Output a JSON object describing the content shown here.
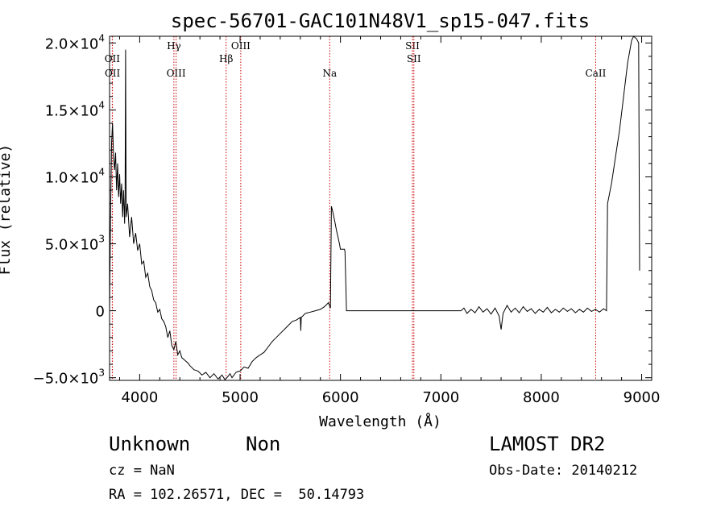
{
  "chart_data": {
    "type": "line",
    "title": "spec-56701-GAC101N48V1_sp15-047.fits",
    "xlabel": "Wavelength (Å)",
    "ylabel": "Flux (relative)",
    "xlim": [
      3700,
      9100
    ],
    "ylim": [
      -5200,
      20500
    ],
    "x_ticks": [
      {
        "value": 4000,
        "label": "4000"
      },
      {
        "value": 5000,
        "label": "5000"
      },
      {
        "value": 6000,
        "label": "6000"
      },
      {
        "value": 7000,
        "label": "7000"
      },
      {
        "value": 8000,
        "label": "8000"
      },
      {
        "value": 9000,
        "label": "9000"
      }
    ],
    "y_ticks": [
      {
        "value": -5000,
        "mant": "−5.0×10",
        "exp": "3"
      },
      {
        "value": 0,
        "mant": "0",
        "exp": ""
      },
      {
        "value": 5000,
        "mant": "5.0×10",
        "exp": "3"
      },
      {
        "value": 10000,
        "mant": "1.0×10",
        "exp": "4"
      },
      {
        "value": 15000,
        "mant": "1.5×10",
        "exp": "4"
      },
      {
        "value": 20000,
        "mant": "2.0×10",
        "exp": "4"
      }
    ],
    "line_color": "#000000",
    "marker_color": "#cc0000",
    "lines": [
      {
        "name": "OII",
        "x": 3727,
        "level": 2
      },
      {
        "name": "OII",
        "x": 3729,
        "level": 3
      },
      {
        "name": "Hγ",
        "x": 4341,
        "level": 0
      },
      {
        "name": "OIII",
        "x": 4363,
        "level": 3
      },
      {
        "name": "Hβ",
        "x": 4861,
        "level": 2
      },
      {
        "name": "OIII",
        "x": 5007,
        "level": 0
      },
      {
        "name": "Na",
        "x": 5893,
        "level": 3
      },
      {
        "name": "SII",
        "x": 6717,
        "level": 0
      },
      {
        "name": "SII",
        "x": 6731,
        "level": 2
      },
      {
        "name": "CaII",
        "x": 8542,
        "level": 3
      }
    ],
    "spectrum": [
      [
        3700,
        0
      ],
      [
        3710,
        7000
      ],
      [
        3720,
        12500
      ],
      [
        3730,
        14000
      ],
      [
        3740,
        11500
      ],
      [
        3750,
        10500
      ],
      [
        3760,
        11800
      ],
      [
        3770,
        9000
      ],
      [
        3780,
        11000
      ],
      [
        3790,
        8500
      ],
      [
        3800,
        10200
      ],
      [
        3810,
        8000
      ],
      [
        3820,
        9500
      ],
      [
        3830,
        7000
      ],
      [
        3840,
        9000
      ],
      [
        3850,
        6500
      ],
      [
        3855,
        8500
      ],
      [
        3860,
        19500
      ],
      [
        3865,
        7000
      ],
      [
        3880,
        8000
      ],
      [
        3900,
        5500
      ],
      [
        3920,
        7000
      ],
      [
        3940,
        5000
      ],
      [
        3960,
        5800
      ],
      [
        3980,
        4500
      ],
      [
        4000,
        5000
      ],
      [
        4020,
        3500
      ],
      [
        4040,
        3700
      ],
      [
        4060,
        2500
      ],
      [
        4080,
        2800
      ],
      [
        4100,
        1800
      ],
      [
        4120,
        1500
      ],
      [
        4140,
        800
      ],
      [
        4160,
        600
      ],
      [
        4180,
        -100
      ],
      [
        4200,
        100
      ],
      [
        4220,
        -600
      ],
      [
        4240,
        -800
      ],
      [
        4260,
        -1200
      ],
      [
        4280,
        -2000
      ],
      [
        4300,
        -1500
      ],
      [
        4320,
        -2600
      ],
      [
        4340,
        -2900
      ],
      [
        4360,
        -2300
      ],
      [
        4380,
        -3300
      ],
      [
        4400,
        -3000
      ],
      [
        4420,
        -3500
      ],
      [
        4450,
        -3700
      ],
      [
        4480,
        -3900
      ],
      [
        4500,
        -4100
      ],
      [
        4540,
        -4400
      ],
      [
        4580,
        -4500
      ],
      [
        4620,
        -4800
      ],
      [
        4660,
        -4600
      ],
      [
        4700,
        -5000
      ],
      [
        4740,
        -4700
      ],
      [
        4780,
        -5100
      ],
      [
        4820,
        -4800
      ],
      [
        4850,
        -5150
      ],
      [
        4880,
        -4900
      ],
      [
        4900,
        -4700
      ],
      [
        4920,
        -5000
      ],
      [
        4960,
        -4600
      ],
      [
        5000,
        -4500
      ],
      [
        5040,
        -4200
      ],
      [
        5080,
        -4300
      ],
      [
        5120,
        -3800
      ],
      [
        5160,
        -3500
      ],
      [
        5200,
        -3300
      ],
      [
        5240,
        -3100
      ],
      [
        5280,
        -2700
      ],
      [
        5320,
        -2300
      ],
      [
        5360,
        -2000
      ],
      [
        5400,
        -1700
      ],
      [
        5440,
        -1400
      ],
      [
        5480,
        -1100
      ],
      [
        5520,
        -800
      ],
      [
        5560,
        -700
      ],
      [
        5600,
        -500
      ],
      [
        5605,
        -1500
      ],
      [
        5610,
        -500
      ],
      [
        5650,
        -200
      ],
      [
        5700,
        -100
      ],
      [
        5750,
        0
      ],
      [
        5800,
        100
      ],
      [
        5840,
        300
      ],
      [
        5880,
        600
      ],
      [
        5900,
        200
      ],
      [
        5910,
        7800
      ],
      [
        5920,
        7500
      ],
      [
        5940,
        6800
      ],
      [
        5960,
        6000
      ],
      [
        5990,
        5000
      ],
      [
        6000,
        4600
      ],
      [
        6040,
        4600
      ],
      [
        6045,
        4400
      ],
      [
        6060,
        0
      ],
      [
        6100,
        0
      ],
      [
        7000,
        0
      ],
      [
        7200,
        0
      ],
      [
        7230,
        200
      ],
      [
        7260,
        -200
      ],
      [
        7300,
        100
      ],
      [
        7340,
        -150
      ],
      [
        7380,
        300
      ],
      [
        7420,
        -100
      ],
      [
        7460,
        150
      ],
      [
        7500,
        -250
      ],
      [
        7540,
        200
      ],
      [
        7580,
        -400
      ],
      [
        7600,
        -1400
      ],
      [
        7620,
        -200
      ],
      [
        7660,
        400
      ],
      [
        7700,
        -100
      ],
      [
        7740,
        200
      ],
      [
        7780,
        -150
      ],
      [
        7820,
        300
      ],
      [
        7860,
        -50
      ],
      [
        7900,
        150
      ],
      [
        7940,
        -200
      ],
      [
        7980,
        100
      ],
      [
        8020,
        -100
      ],
      [
        8060,
        250
      ],
      [
        8100,
        -150
      ],
      [
        8140,
        100
      ],
      [
        8180,
        -100
      ],
      [
        8220,
        200
      ],
      [
        8260,
        -50
      ],
      [
        8300,
        150
      ],
      [
        8340,
        -150
      ],
      [
        8380,
        100
      ],
      [
        8420,
        -100
      ],
      [
        8460,
        200
      ],
      [
        8500,
        -50
      ],
      [
        8540,
        100
      ],
      [
        8580,
        -100
      ],
      [
        8620,
        150
      ],
      [
        8650,
        0
      ],
      [
        8660,
        8000
      ],
      [
        8700,
        9500
      ],
      [
        8740,
        11500
      ],
      [
        8780,
        13500
      ],
      [
        8820,
        16000
      ],
      [
        8860,
        18500
      ],
      [
        8900,
        20200
      ],
      [
        8920,
        20500
      ],
      [
        8950,
        20300
      ],
      [
        8970,
        20000
      ],
      [
        8980,
        3000
      ]
    ]
  },
  "info": {
    "class": "Unknown",
    "subclass": "Non",
    "survey": "LAMOST DR2",
    "cz": "cz = NaN",
    "obs_date": "Obs-Date: 20140212",
    "radec": "RA = 102.26571, DEC =  50.14793"
  }
}
